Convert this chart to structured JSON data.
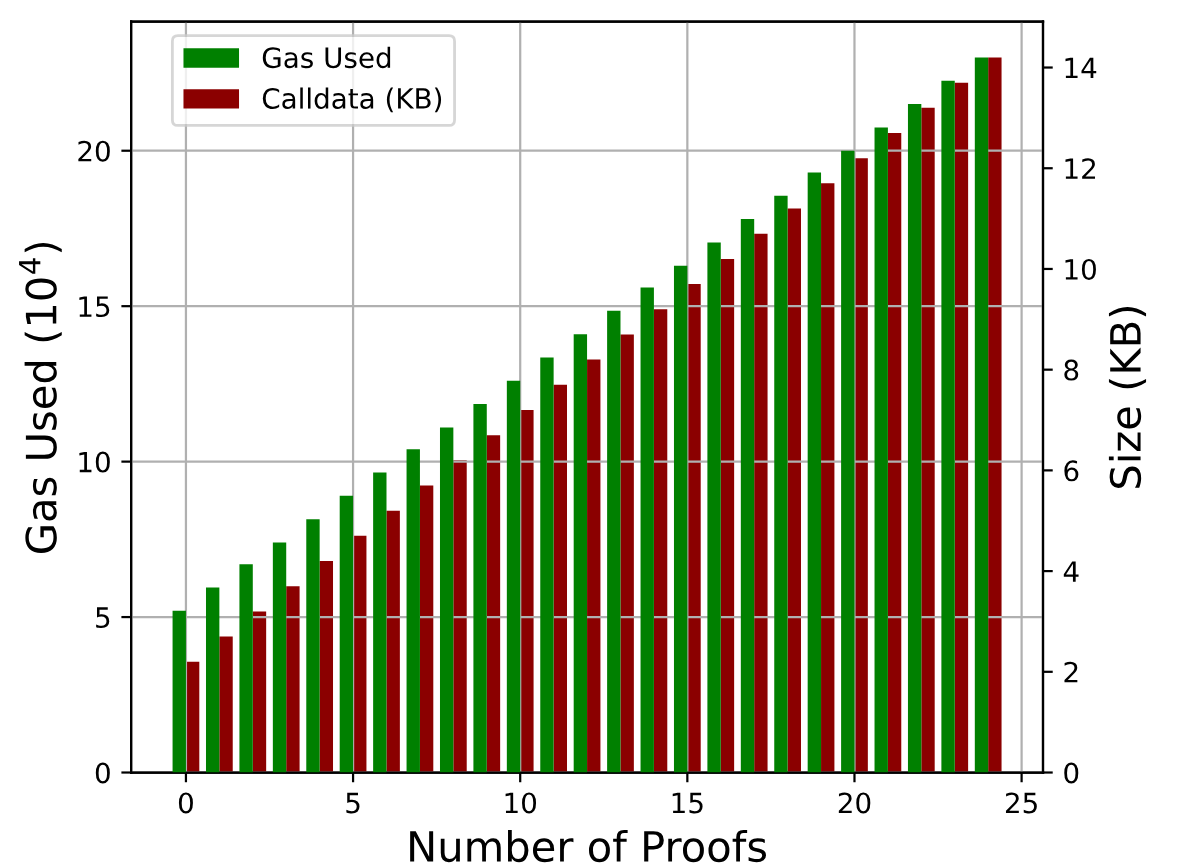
{
  "chart_data": {
    "type": "bar",
    "xlabel": "Number of Proofs",
    "ylabel": "Gas Used (10$^{4}$)",
    "y2label": "Size (KB)",
    "x": [
      0,
      1,
      2,
      3,
      4,
      5,
      6,
      7,
      8,
      9,
      10,
      11,
      12,
      13,
      14,
      15,
      16,
      17,
      18,
      19,
      20,
      21,
      22,
      23,
      24
    ],
    "series": [
      {
        "name": "Gas Used",
        "color": "#008000",
        "values": [
          5.2,
          5.95,
          6.7,
          7.4,
          8.15,
          8.9,
          9.65,
          10.4,
          11.1,
          11.85,
          12.6,
          13.35,
          14.1,
          14.85,
          15.6,
          16.3,
          17.05,
          17.8,
          18.55,
          19.3,
          20.0,
          20.75,
          21.5,
          22.25,
          23.0
        ]
      },
      {
        "name": "Calldata (KB)",
        "color": "#8b0000",
        "axis": "y2",
        "values": [
          2.2,
          2.7,
          3.2,
          3.7,
          4.2,
          4.7,
          5.2,
          5.7,
          6.2,
          6.7,
          7.2,
          7.7,
          8.2,
          8.7,
          9.2,
          9.7,
          10.2,
          10.7,
          11.2,
          11.7,
          12.2,
          12.7,
          13.2,
          13.7,
          14.2
        ]
      }
    ],
    "xlim": [
      -1.64,
      25.64
    ],
    "xticks": [
      0,
      5,
      10,
      15,
      20,
      25
    ],
    "ylim": [
      0,
      24.15
    ],
    "yticks": [
      0,
      5,
      10,
      15,
      20
    ],
    "y2lim": [
      0,
      14.91
    ],
    "y2ticks": [
      0,
      2,
      4,
      6,
      8,
      10,
      12,
      14
    ],
    "grid": true,
    "legend": "top left"
  }
}
